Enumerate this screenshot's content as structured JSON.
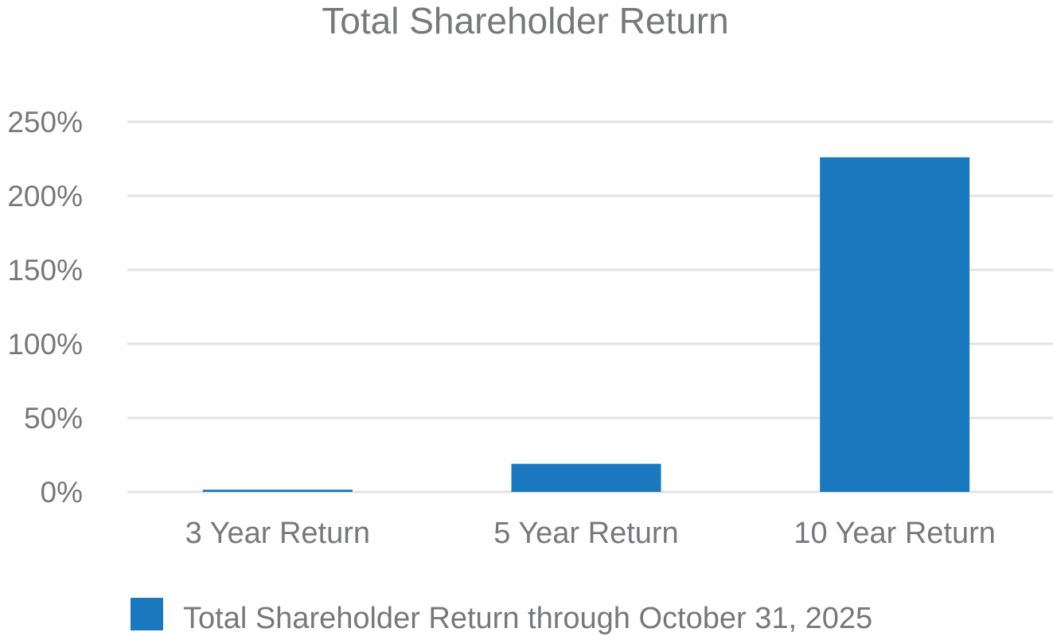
{
  "chart_data": {
    "type": "bar",
    "title": "Total Shareholder Return",
    "categories": [
      "3 Year Return",
      "5 Year Return",
      "10 Year Return"
    ],
    "series": [
      {
        "name": "Total Shareholder Return through October 31, 2025",
        "values": [
          1.5,
          19,
          226
        ]
      }
    ],
    "ylim": [
      0,
      250
    ],
    "yticks": [
      0,
      50,
      100,
      150,
      200,
      250
    ],
    "ytick_labels": [
      "0%",
      "50%",
      "100%",
      "150%",
      "200%",
      "250%"
    ],
    "grid": true,
    "legend": "bottom",
    "colors": {
      "bar": "#1a78bf",
      "text": "#77787b",
      "grid": "#e3e3e3"
    }
  }
}
